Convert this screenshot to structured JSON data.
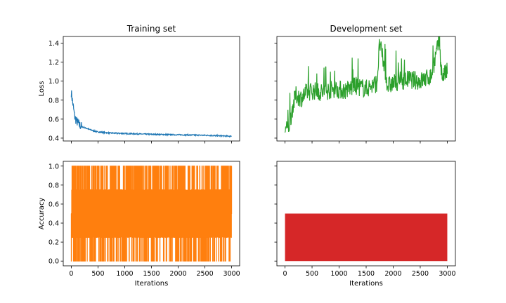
{
  "chart_data": [
    {
      "type": "line",
      "panel": "top-left",
      "title": "Training set",
      "xlabel": "",
      "ylabel": "Loss",
      "xlim": [
        -150,
        3150
      ],
      "ylim": [
        0.37,
        1.47
      ],
      "xticks": [
        0,
        500,
        1000,
        1500,
        2000,
        2500,
        3000
      ],
      "xtick_labels_shown": false,
      "yticks": [
        "0.4",
        "0.6",
        "0.8",
        "1.0",
        "1.2",
        "1.4"
      ],
      "series": [
        {
          "color": "#1f77b4",
          "x": [
            0,
            20,
            40,
            60,
            80,
            100,
            150,
            200,
            300,
            400,
            500,
            700,
            900,
            1200,
            1500,
            2000,
            2500,
            3000
          ],
          "y": [
            0.88,
            0.8,
            0.72,
            0.64,
            0.6,
            0.58,
            0.54,
            0.52,
            0.5,
            0.48,
            0.465,
            0.455,
            0.45,
            0.445,
            0.44,
            0.435,
            0.43,
            0.42
          ]
        }
      ]
    },
    {
      "type": "line",
      "panel": "top-right",
      "title": "Development set",
      "xlabel": "",
      "ylabel": "",
      "xlim": [
        -150,
        3150
      ],
      "ylim": [
        0.37,
        1.47
      ],
      "xticks": [
        0,
        500,
        1000,
        1500,
        2000,
        2500,
        3000
      ],
      "xtick_labels_shown": false,
      "yticks_shared": true,
      "series": [
        {
          "color": "#2ca02c",
          "x": [
            0,
            50,
            100,
            150,
            200,
            300,
            400,
            500,
            700,
            900,
            1100,
            1300,
            1500,
            1700,
            1750,
            1900,
            2100,
            2300,
            2500,
            2700,
            2850,
            2900,
            3000
          ],
          "y": [
            0.5,
            0.48,
            0.6,
            0.75,
            0.85,
            0.82,
            0.88,
            0.9,
            0.88,
            0.92,
            0.9,
            0.95,
            0.92,
            0.98,
            1.4,
            0.95,
            1.0,
            1.02,
            1.0,
            1.05,
            1.42,
            1.05,
            1.1
          ]
        }
      ]
    },
    {
      "type": "line",
      "panel": "bottom-left",
      "title": "",
      "xlabel": "Iterations",
      "ylabel": "Accuracy",
      "xlim": [
        -150,
        3150
      ],
      "ylim": [
        -0.05,
        1.05
      ],
      "xticks": [
        0,
        500,
        1000,
        1500,
        2000,
        2500,
        3000
      ],
      "yticks": [
        "0.0",
        "0.2",
        "0.4",
        "0.6",
        "0.8",
        "1.0"
      ],
      "series": [
        {
          "color": "#ff7f0e",
          "note_values": "oscillates between 0.0, 0.25, 0.5, 0.75 and 1.0 every iteration",
          "x": [
            0,
            3000
          ],
          "levels": [
            0.0,
            0.25,
            0.5,
            0.75,
            1.0
          ]
        }
      ]
    },
    {
      "type": "line",
      "panel": "bottom-right",
      "title": "",
      "xlabel": "Iterations",
      "ylabel": "",
      "xlim": [
        -150,
        3150
      ],
      "ylim": [
        -0.05,
        1.05
      ],
      "xticks": [
        0,
        500,
        1000,
        1500,
        2000,
        2500,
        3000
      ],
      "yticks_shared": true,
      "series": [
        {
          "color": "#d62728",
          "x": [
            0,
            3000
          ],
          "levels": [
            0.0,
            0.5
          ]
        }
      ]
    }
  ]
}
